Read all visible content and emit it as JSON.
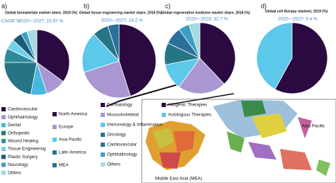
{
  "chart_data": [
    {
      "type": "pie",
      "panel": "a)",
      "title": "Global biomaterials market share, 2019 (%)",
      "cagr_label": "CAGR %",
      "subtitle": "2020—2027; 15.97 %",
      "categories": [
        "Cardiovascular",
        "Ophthalmology",
        "Dental",
        "Orthopedic",
        "Wound Healing",
        "Tissue Engineering",
        "Plastic Surgery",
        "Neurology",
        "Others"
      ],
      "values": [
        35,
        10,
        8,
        22,
        7,
        5,
        5,
        3,
        5
      ],
      "colors": [
        "#2a0a40",
        "#a996d2",
        "#47b8dd",
        "#267585",
        "#2e8a9a",
        "#6fd2ec",
        "#1e5a7a",
        "#3d9fc4",
        "#a8d8e0"
      ]
    },
    {
      "type": "pie",
      "panel": "b)",
      "title": "Global tissue engineering market share, 2019 (%)",
      "subtitle": "2020—2027; 14.2 %",
      "categories": [
        "North America",
        "Europe",
        "Asia Pacific",
        "Latin America",
        "MEA"
      ],
      "values": [
        45,
        25,
        18,
        7,
        5
      ],
      "colors": [
        "#2a0a40",
        "#a996d2",
        "#5cc8ea",
        "#267585",
        "#2b6f9a"
      ]
    },
    {
      "type": "pie",
      "panel": "c)",
      "title": "Global regenerative medicine market share, 2018 (%)",
      "subtitle": "2020—2023; 32.7 %",
      "categories": [
        "Dermatology",
        "Musculoskeletal",
        "Immunology & Inflammation",
        "Oncology",
        "Cardiovascular",
        "Ophthalmology",
        "Others"
      ],
      "values": [
        38,
        22,
        12,
        10,
        8,
        5,
        5
      ],
      "colors": [
        "#2a0a40",
        "#a996d2",
        "#5cc8ea",
        "#267585",
        "#2b6f9a",
        "#3d9fc4",
        "#a8d8e0"
      ]
    },
    {
      "type": "pie",
      "panel": "d)",
      "title": "Global cell therapy markeet, 2019 (%)",
      "subtitle": "2020—2027; 5.4 %",
      "categories": [
        "Allogenic Therapies",
        "Autologous Therapies"
      ],
      "values": [
        58,
        42
      ],
      "colors": [
        "#2a0a40",
        "#5cc8ea"
      ]
    }
  ],
  "map": {
    "labels": [
      "Asia Pacific",
      "Middle East Asia (MEA)"
    ]
  }
}
